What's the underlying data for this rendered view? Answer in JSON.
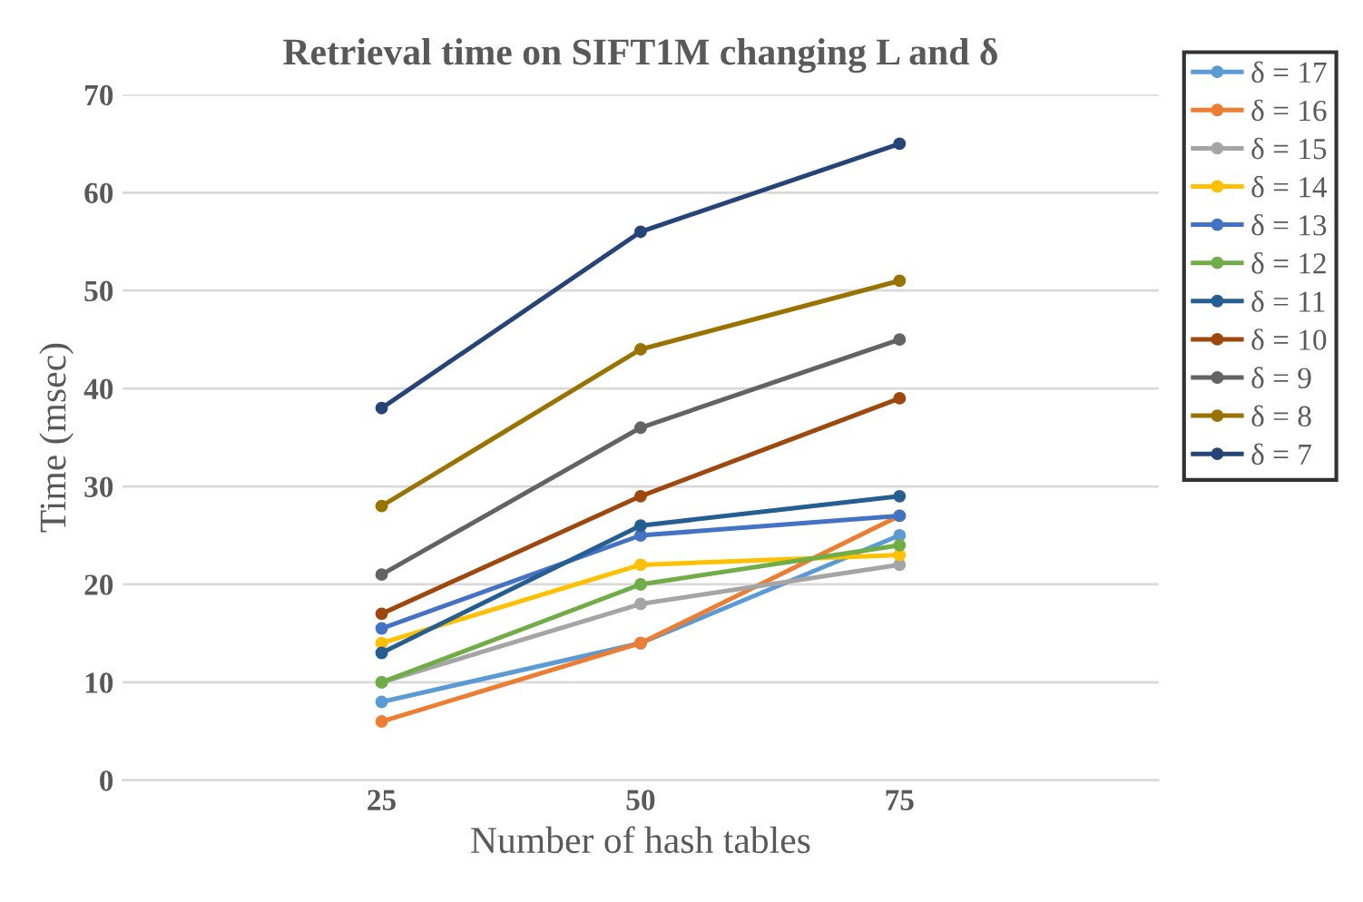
{
  "chart_data": {
    "type": "line",
    "title": "Retrieval time on SIFT1M changing L and δ",
    "xlabel": "Number of hash tables",
    "ylabel": "Time (msec)",
    "categories": [
      "25",
      "50",
      "75"
    ],
    "series": [
      {
        "name": "δ = 17",
        "color": "#5b9bd5",
        "values": [
          8,
          14,
          25
        ]
      },
      {
        "name": "δ = 16",
        "color": "#ed7d31",
        "values": [
          6,
          14,
          27
        ]
      },
      {
        "name": "δ = 15",
        "color": "#a5a5a5",
        "values": [
          10,
          18,
          22
        ]
      },
      {
        "name": "δ = 14",
        "color": "#ffc000",
        "values": [
          14,
          22,
          23
        ]
      },
      {
        "name": "δ = 13",
        "color": "#4472c4",
        "values": [
          15.5,
          25,
          27
        ]
      },
      {
        "name": "δ = 12",
        "color": "#70ad47",
        "values": [
          10,
          20,
          24
        ]
      },
      {
        "name": "δ = 11",
        "color": "#255e91",
        "values": [
          13,
          26,
          29
        ]
      },
      {
        "name": "δ = 10",
        "color": "#9e480e",
        "values": [
          17,
          29,
          39
        ]
      },
      {
        "name": "δ = 9",
        "color": "#636363",
        "values": [
          21,
          36,
          45
        ]
      },
      {
        "name": "δ = 8",
        "color": "#997300",
        "values": [
          28,
          44,
          51
        ]
      },
      {
        "name": "δ = 7",
        "color": "#264478",
        "values": [
          38,
          56,
          65
        ]
      }
    ],
    "ylim": [
      0,
      70
    ],
    "yticks": [
      0,
      10,
      20,
      30,
      40,
      50,
      60,
      70
    ],
    "grid": "y",
    "legend": "right",
    "marker": "circle",
    "line_style": "solid"
  }
}
